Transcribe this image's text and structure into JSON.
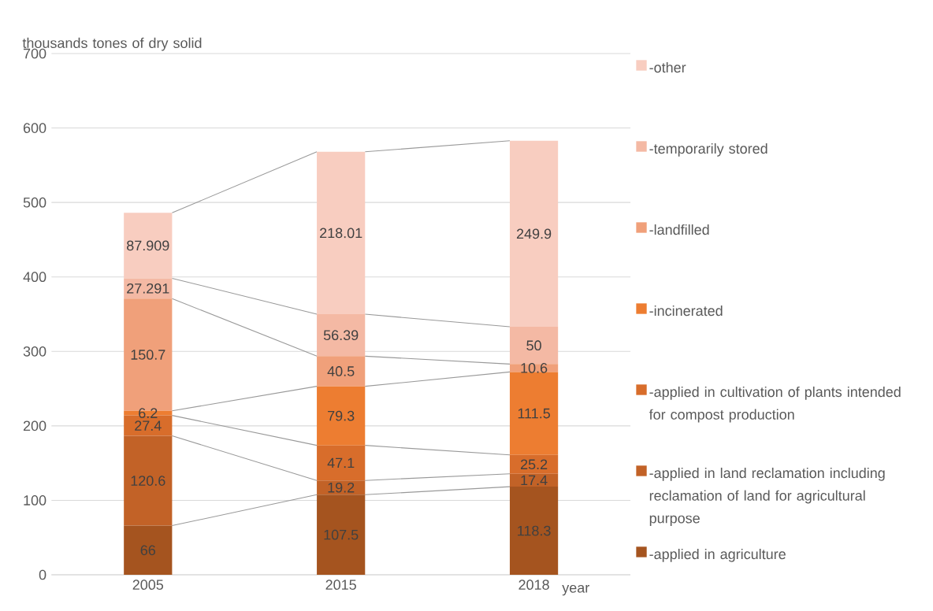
{
  "chart_data": {
    "type": "bar",
    "stacked": true,
    "xlabel": "year",
    "ylabel": "thousands tones of dry solid",
    "categories": [
      "2005",
      "2015",
      "2018"
    ],
    "series": [
      {
        "name": "-applied in agriculture",
        "color": "#a5541f",
        "values": [
          66,
          107.5,
          118.3
        ]
      },
      {
        "name": "-applied in land reclamation including reclamation of land for agricultural purpose",
        "color": "#c26227",
        "values": [
          120.6,
          19.2,
          17.4
        ]
      },
      {
        "name": "-applied in cultivation of plants intended for compost production",
        "color": "#d86d2b",
        "values": [
          27.4,
          47.1,
          25.2
        ]
      },
      {
        "name": "-incinerated",
        "color": "#ed7d31",
        "values": [
          6.2,
          79.3,
          111.5
        ]
      },
      {
        "name": "-landfilled",
        "color": "#f0a07a",
        "values": [
          150.7,
          40.5,
          10.6
        ]
      },
      {
        "name": "-temporarily stored",
        "color": "#f4b9a4",
        "values": [
          27.291,
          56.39,
          50
        ]
      },
      {
        "name": "-other",
        "color": "#f8cdc0",
        "values": [
          87.909,
          218.01,
          249.9
        ]
      }
    ],
    "ylim": [
      0,
      700
    ],
    "yticks": [
      0,
      100,
      200,
      300,
      400,
      500,
      600,
      700
    ],
    "grid": "y",
    "legend": "right",
    "data_labels": true
  }
}
